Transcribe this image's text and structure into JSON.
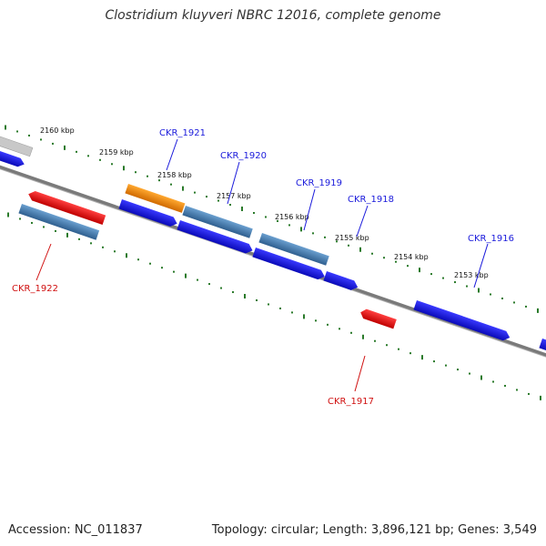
{
  "title": "Clostridium kluyveri NBRC 12016, complete genome",
  "footer": {
    "accession": "Accession: NC_011837",
    "summary": "Topology: circular; Length: 3,896,121 bp; Genes: 3,549"
  },
  "scale_labels": [
    "2160 kbp",
    "2159 kbp",
    "2158 kbp",
    "2157 kbp",
    "2156 kbp",
    "2155 kbp",
    "2154 kbp",
    "2153 kbp"
  ],
  "gene_labels": {
    "CKR_1921": "CKR_1921",
    "CKR_1920": "CKR_1920",
    "CKR_1919": "CKR_1919",
    "CKR_1918": "CKR_1918",
    "CKR_1916": "CKR_1916",
    "CKR_1922": "CKR_1922",
    "CKR_1917": "CKR_1917"
  },
  "colors": {
    "backbone": "#808080",
    "forward_label": "#1a1adb",
    "reverse_label": "#d01010",
    "gene_blue": "#1111dd",
    "gene_steel": "#4a7fb0",
    "gene_red": "#ee1111",
    "gene_orange": "#f08a10",
    "gene_gray": "#b8b8b8",
    "tick_green": "#2a7a2a"
  }
}
